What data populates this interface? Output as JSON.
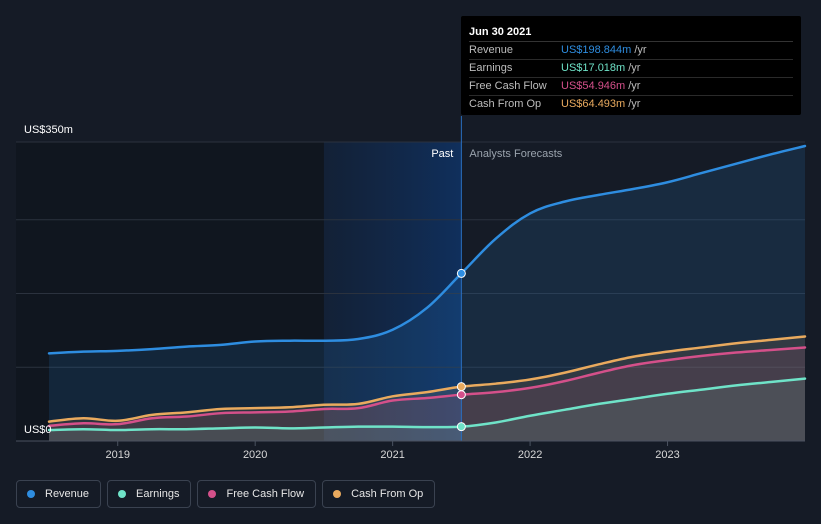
{
  "chart_data": {
    "type": "area",
    "y_axis_labels": [
      "US$350m",
      "US$0"
    ],
    "ylim": [
      0,
      350
    ],
    "xlim": [
      2018.5,
      2024.0
    ],
    "x_ticks": [
      {
        "value": 2019,
        "label": "2019"
      },
      {
        "value": 2020,
        "label": "2020"
      },
      {
        "value": 2021,
        "label": "2021"
      },
      {
        "value": 2022,
        "label": "2022"
      },
      {
        "value": 2023,
        "label": "2023"
      }
    ],
    "divider_x": 2021.5,
    "past_region_start": 2020.5,
    "past_label": "Past",
    "forecast_label": "Analysts Forecasts",
    "series": [
      {
        "name": "Revenue",
        "color": "#2e8de0",
        "points": [
          [
            2018.5,
            104
          ],
          [
            2018.75,
            106
          ],
          [
            2019.0,
            107
          ],
          [
            2019.25,
            109
          ],
          [
            2019.5,
            112
          ],
          [
            2019.75,
            114
          ],
          [
            2020.0,
            118
          ],
          [
            2020.25,
            119
          ],
          [
            2020.5,
            119
          ],
          [
            2020.75,
            121
          ],
          [
            2021.0,
            132
          ],
          [
            2021.25,
            158
          ],
          [
            2021.5,
            198.844
          ],
          [
            2021.75,
            240
          ],
          [
            2022.0,
            270
          ],
          [
            2022.25,
            284
          ],
          [
            2022.5,
            292
          ],
          [
            2022.75,
            299
          ],
          [
            2023.0,
            307
          ],
          [
            2023.25,
            318
          ],
          [
            2023.5,
            329
          ],
          [
            2023.75,
            340
          ],
          [
            2024.0,
            350
          ]
        ]
      },
      {
        "name": "Earnings",
        "color": "#6fe3c8",
        "points": [
          [
            2018.5,
            13
          ],
          [
            2018.75,
            14
          ],
          [
            2019.0,
            13
          ],
          [
            2019.25,
            14
          ],
          [
            2019.5,
            14
          ],
          [
            2019.75,
            15
          ],
          [
            2020.0,
            16
          ],
          [
            2020.25,
            15
          ],
          [
            2020.5,
            16
          ],
          [
            2020.75,
            17
          ],
          [
            2021.0,
            17
          ],
          [
            2021.25,
            16.5
          ],
          [
            2021.5,
            17.018
          ],
          [
            2021.75,
            22
          ],
          [
            2022.0,
            30
          ],
          [
            2022.25,
            37
          ],
          [
            2022.5,
            44
          ],
          [
            2022.75,
            50
          ],
          [
            2023.0,
            56
          ],
          [
            2023.25,
            61
          ],
          [
            2023.5,
            66
          ],
          [
            2023.75,
            70
          ],
          [
            2024.0,
            74
          ]
        ]
      },
      {
        "name": "Free Cash Flow",
        "color": "#d4508a",
        "points": [
          [
            2018.5,
            18
          ],
          [
            2018.75,
            21
          ],
          [
            2019.0,
            20
          ],
          [
            2019.25,
            27
          ],
          [
            2019.5,
            29
          ],
          [
            2019.75,
            33
          ],
          [
            2020.0,
            34
          ],
          [
            2020.25,
            35
          ],
          [
            2020.5,
            38
          ],
          [
            2020.75,
            39
          ],
          [
            2021.0,
            48
          ],
          [
            2021.25,
            51
          ],
          [
            2021.5,
            54.946
          ],
          [
            2021.75,
            58
          ],
          [
            2022.0,
            63
          ],
          [
            2022.25,
            71
          ],
          [
            2022.5,
            81
          ],
          [
            2022.75,
            90
          ],
          [
            2023.0,
            96
          ],
          [
            2023.25,
            101
          ],
          [
            2023.5,
            105
          ],
          [
            2023.75,
            108
          ],
          [
            2024.0,
            111
          ]
        ]
      },
      {
        "name": "Cash From Op",
        "color": "#e9aa5e",
        "points": [
          [
            2018.5,
            23
          ],
          [
            2018.75,
            27
          ],
          [
            2019.0,
            24
          ],
          [
            2019.25,
            31
          ],
          [
            2019.5,
            34
          ],
          [
            2019.75,
            38
          ],
          [
            2020.0,
            39
          ],
          [
            2020.25,
            40
          ],
          [
            2020.5,
            43
          ],
          [
            2020.75,
            44
          ],
          [
            2021.0,
            53
          ],
          [
            2021.25,
            58
          ],
          [
            2021.5,
            64.493
          ],
          [
            2021.75,
            68
          ],
          [
            2022.0,
            73
          ],
          [
            2022.25,
            81
          ],
          [
            2022.5,
            91
          ],
          [
            2022.75,
            100
          ],
          [
            2023.0,
            106
          ],
          [
            2023.25,
            111
          ],
          [
            2023.5,
            116
          ],
          [
            2023.75,
            120
          ],
          [
            2024.0,
            124
          ]
        ]
      }
    ]
  },
  "tooltip": {
    "date": "Jun 30 2021",
    "rows": [
      {
        "name": "Revenue",
        "value": "US$198.844m",
        "unit": "/yr",
        "color": "#2e8de0"
      },
      {
        "name": "Earnings",
        "value": "US$17.018m",
        "unit": "/yr",
        "color": "#6fe3c8"
      },
      {
        "name": "Free Cash Flow",
        "value": "US$54.946m",
        "unit": "/yr",
        "color": "#d4508a"
      },
      {
        "name": "Cash From Op",
        "value": "US$64.493m",
        "unit": "/yr",
        "color": "#e9aa5e"
      }
    ]
  },
  "legend": [
    {
      "label": "Revenue",
      "color": "#2e8de0"
    },
    {
      "label": "Earnings",
      "color": "#6fe3c8"
    },
    {
      "label": "Free Cash Flow",
      "color": "#d4508a"
    },
    {
      "label": "Cash From Op",
      "color": "#e9aa5e"
    }
  ]
}
